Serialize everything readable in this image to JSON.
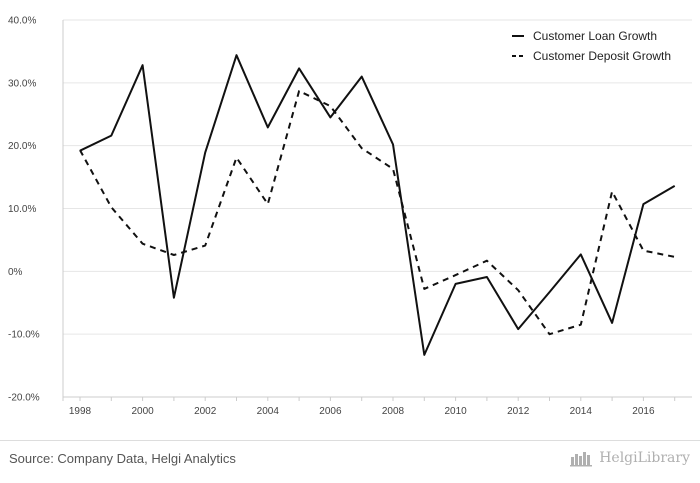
{
  "chart_data": {
    "type": "line",
    "x": [
      1998,
      1999,
      2000,
      2001,
      2002,
      2003,
      2004,
      2005,
      2006,
      2007,
      2008,
      2009,
      2010,
      2011,
      2012,
      2013,
      2014,
      2015,
      2016,
      2017
    ],
    "series": [
      {
        "name": "Customer Loan Growth",
        "style": "solid",
        "values": [
          19.2,
          21.6,
          32.8,
          -4.2,
          18.9,
          34.4,
          22.9,
          32.3,
          24.5,
          31.0,
          20.2,
          -13.3,
          -2.0,
          -0.9,
          -9.2,
          -3.3,
          2.7,
          -8.2,
          10.7,
          13.6
        ]
      },
      {
        "name": "Customer Deposit Growth",
        "style": "dashed",
        "values": [
          19.3,
          10.2,
          4.4,
          2.6,
          4.1,
          18.1,
          10.7,
          28.7,
          26.3,
          19.6,
          16.3,
          -2.8,
          -0.6,
          1.7,
          -3.0,
          -10.0,
          -8.5,
          12.7,
          3.3,
          2.3
        ]
      }
    ],
    "ylim": [
      -20,
      40
    ],
    "yticks": [
      -20,
      -10,
      0,
      10,
      20,
      30,
      40
    ],
    "ytick_labels": [
      "-20.0%",
      "-10.0%",
      "0%",
      "10.0%",
      "20.0%",
      "30.0%",
      "40.0%"
    ],
    "xticks": [
      1998,
      2000,
      2002,
      2004,
      2006,
      2008,
      2010,
      2012,
      2014,
      2016
    ],
    "xtick_labels": [
      "1998",
      "2000",
      "2002",
      "2004",
      "2006",
      "2008",
      "2010",
      "2012",
      "2014",
      "2016"
    ],
    "legend_position": "top-right",
    "grid": true
  },
  "footer": {
    "source": "Source: Company Data, Helgi Analytics",
    "brand": "HelgiLibrary"
  },
  "colors": {
    "line": "#111111",
    "grid": "#e6e6e6",
    "axis": "#cccccc"
  }
}
